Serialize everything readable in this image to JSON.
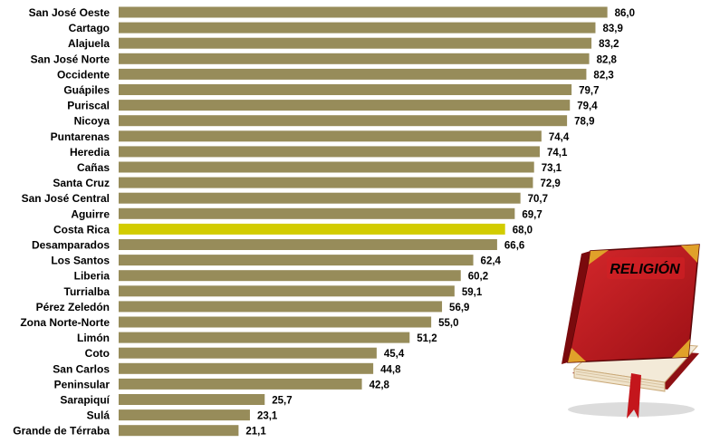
{
  "chart_data": {
    "type": "bar",
    "orientation": "horizontal",
    "categories": [
      "San José Oeste",
      "Cartago",
      "Alajuela",
      "San José Norte",
      "Occidente",
      "Guápiles",
      "Puriscal",
      "Nicoya",
      "Puntarenas",
      "Heredia",
      "Cañas",
      "Santa Cruz",
      "San José Central",
      "Aguirre",
      "Costa Rica",
      "Desamparados",
      "Los Santos",
      "Liberia",
      "Turrialba",
      "Pérez Zeledón",
      "Zona Norte-Norte",
      "Limón",
      "Coto",
      "San Carlos",
      "Peninsular",
      "Sarapiquí",
      "Sulá",
      "Grande de Térraba"
    ],
    "values": [
      86.0,
      83.9,
      83.2,
      82.8,
      82.3,
      79.7,
      79.4,
      78.9,
      74.4,
      74.1,
      73.1,
      72.9,
      70.7,
      69.7,
      68.0,
      66.6,
      62.4,
      60.2,
      59.1,
      56.9,
      55.0,
      51.2,
      45.4,
      44.8,
      42.8,
      25.7,
      23.1,
      21.1
    ],
    "value_labels": [
      "86,0",
      "83,9",
      "83,2",
      "82,8",
      "82,3",
      "79,7",
      "79,4",
      "78,9",
      "74,4",
      "74,1",
      "73,1",
      "72,9",
      "70,7",
      "69,7",
      "68,0",
      "66,6",
      "62,4",
      "60,2",
      "59,1",
      "56,9",
      "55,0",
      "51,2",
      "45,4",
      "44,8",
      "42,8",
      "25,7",
      "23,1",
      "21,1"
    ],
    "highlight": "Costa Rica",
    "colors": {
      "bar": "#978C5A",
      "highlight": "#D2CC00"
    },
    "grid": false,
    "legend": "none"
  },
  "decoration": {
    "book_title": "RELIGIÓN",
    "book_cover_color": "#B3161B",
    "book_trim_color": "#E0A12A"
  }
}
